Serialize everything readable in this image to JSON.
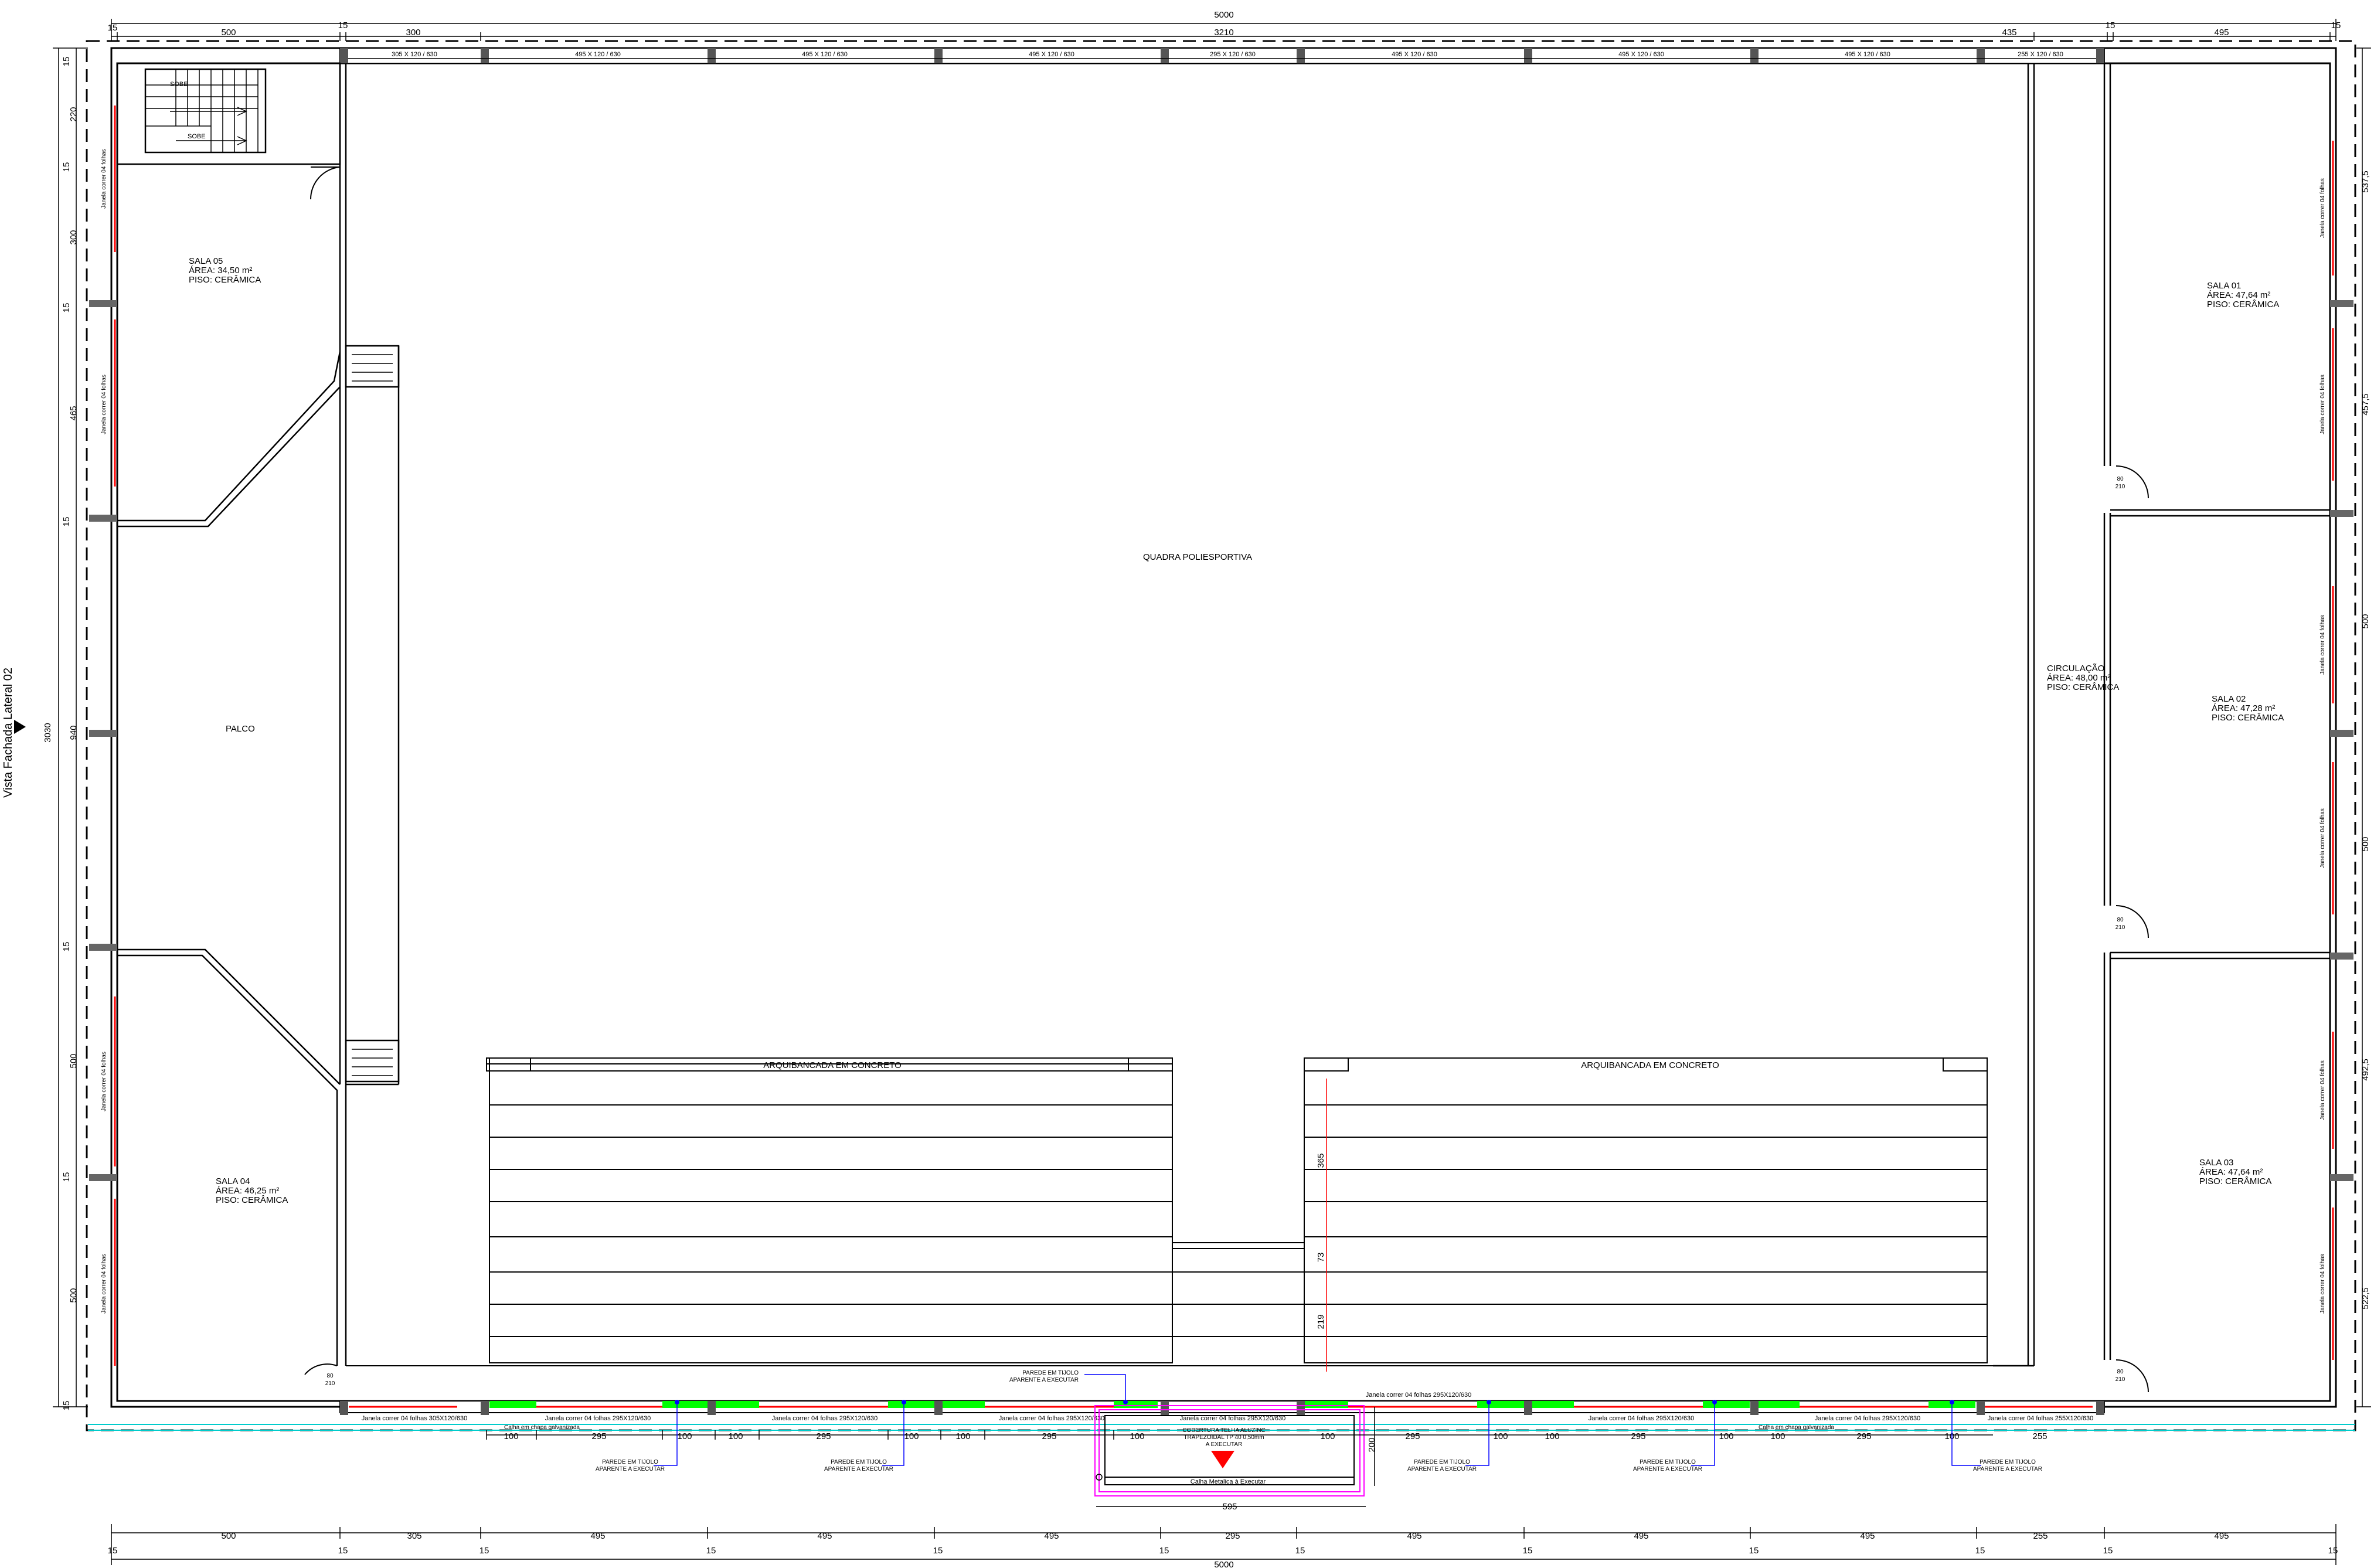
{
  "view_label": "Vista Fachada Lateral 02",
  "rooms": {
    "quadra": "QUADRA POLIESPORTIVA",
    "palco": "PALCO",
    "sala05": {
      "name": "SALA 05",
      "area": "ÁREA: 34,50 m²",
      "piso": "PISO: CERÂMICA"
    },
    "sala04": {
      "name": "SALA 04",
      "area": "ÁREA: 46,25 m²",
      "piso": "PISO: CERÂMICA"
    },
    "sala01": {
      "name": "SALA 01",
      "area": "ÁREA: 47,64 m²",
      "piso": "PISO: CERÂMICA"
    },
    "sala02": {
      "name": "SALA 02",
      "area": "ÁREA: 47,28 m²",
      "piso": "PISO: CERÂMICA"
    },
    "sala03": {
      "name": "SALA 03",
      "area": "ÁREA: 47,64 m²",
      "piso": "PISO: CERÂMICA"
    },
    "circulacao": {
      "name": "CIRCULAÇÃO",
      "area": "ÁREA: 48,00 m²",
      "piso": "PISO: CERÂMICA"
    },
    "arquibancada": "ARQUIBANCADA EM CONCRETO"
  },
  "stairs": {
    "up1": "SOBE",
    "up2": "SOBE"
  },
  "top_dims": {
    "total": "5000",
    "parts": [
      "15",
      "500",
      "15",
      "300",
      "3210",
      "435",
      "15",
      "495",
      "15"
    ]
  },
  "top_windows": [
    "305 X 120 / 630",
    "495 X 120 / 630",
    "495 X 120 / 630",
    "495 X 120 / 630",
    "295 X 120 / 630",
    "495 X 120 / 630",
    "495 X 120 / 630",
    "495 X 120 / 630",
    "255 X 120 / 630"
  ],
  "bottom_windows": [
    "Janela correr 04 folhas 305X120/630",
    "Janela correr 04 folhas 295X120/630",
    "Janela correr 04 folhas 295X120/630",
    "Janela correr 04 folhas 295X120/630",
    "Janela correr 04 folhas 295X120/630",
    "Janela correr 04 folhas 295X120/630",
    "Janela correr 04 folhas 295X120/630",
    "Janela correr 04 folhas 255X120/630",
    "Janela correr 04 folhas 295X120/630"
  ],
  "calha_labels": [
    "Calha em chapa galvanizada",
    "Calha em chapa galvanizada"
  ],
  "lower_dims": [
    "100",
    "295",
    "100",
    "100",
    "295",
    "100",
    "100",
    "295",
    "100",
    "100",
    "295",
    "100",
    "100",
    "295",
    "100",
    "100",
    "295",
    "100",
    "255"
  ],
  "parede_note": [
    "PAREDE EM TIJOLO",
    "APARENTE A EXECUTAR"
  ],
  "cobertura_note": [
    "COBERTURA TELHA ALUZINC",
    "TRAPEZOIDAL TP 40 0,50mm",
    "A EXECUTAR"
  ],
  "calha_metalica": "Calha Metalica à Executar",
  "canopy_dims": {
    "width": "595",
    "depth": "200"
  },
  "bottom_dims": {
    "total": "5000",
    "parts": [
      "15",
      "500",
      "15",
      "305",
      "15",
      "495",
      "15",
      "495",
      "15",
      "495",
      "15",
      "295",
      "15",
      "495",
      "15",
      "495",
      "15",
      "495",
      "15",
      "255",
      "15",
      "495",
      "15"
    ]
  },
  "left_dims": {
    "total": "3030",
    "parts": [
      "15",
      "220",
      "15",
      "300",
      "15",
      "465",
      "15",
      "940",
      "15",
      "500",
      "15",
      "500",
      "15"
    ]
  },
  "right_dims": [
    "537,5",
    "457,5",
    "500",
    "500",
    "492,5",
    "522,5"
  ],
  "door_labels": [
    {
      "w": "80",
      "h": "210"
    },
    {
      "w": "80",
      "h": "210"
    },
    {
      "w": "80",
      "h": "210"
    },
    {
      "w": "80",
      "h": "210"
    },
    {
      "w": "80",
      "h": "210"
    }
  ],
  "bleacher_dims": [
    "365",
    "73",
    "219"
  ],
  "side_window_label": "Janela correr 04 folhas",
  "colors": {
    "wall": "#000000",
    "window": "#ff0000",
    "glass": "#00ff00",
    "note": "#0000ff",
    "canopy": "#ff00ff",
    "gutter": "#00cccc"
  }
}
